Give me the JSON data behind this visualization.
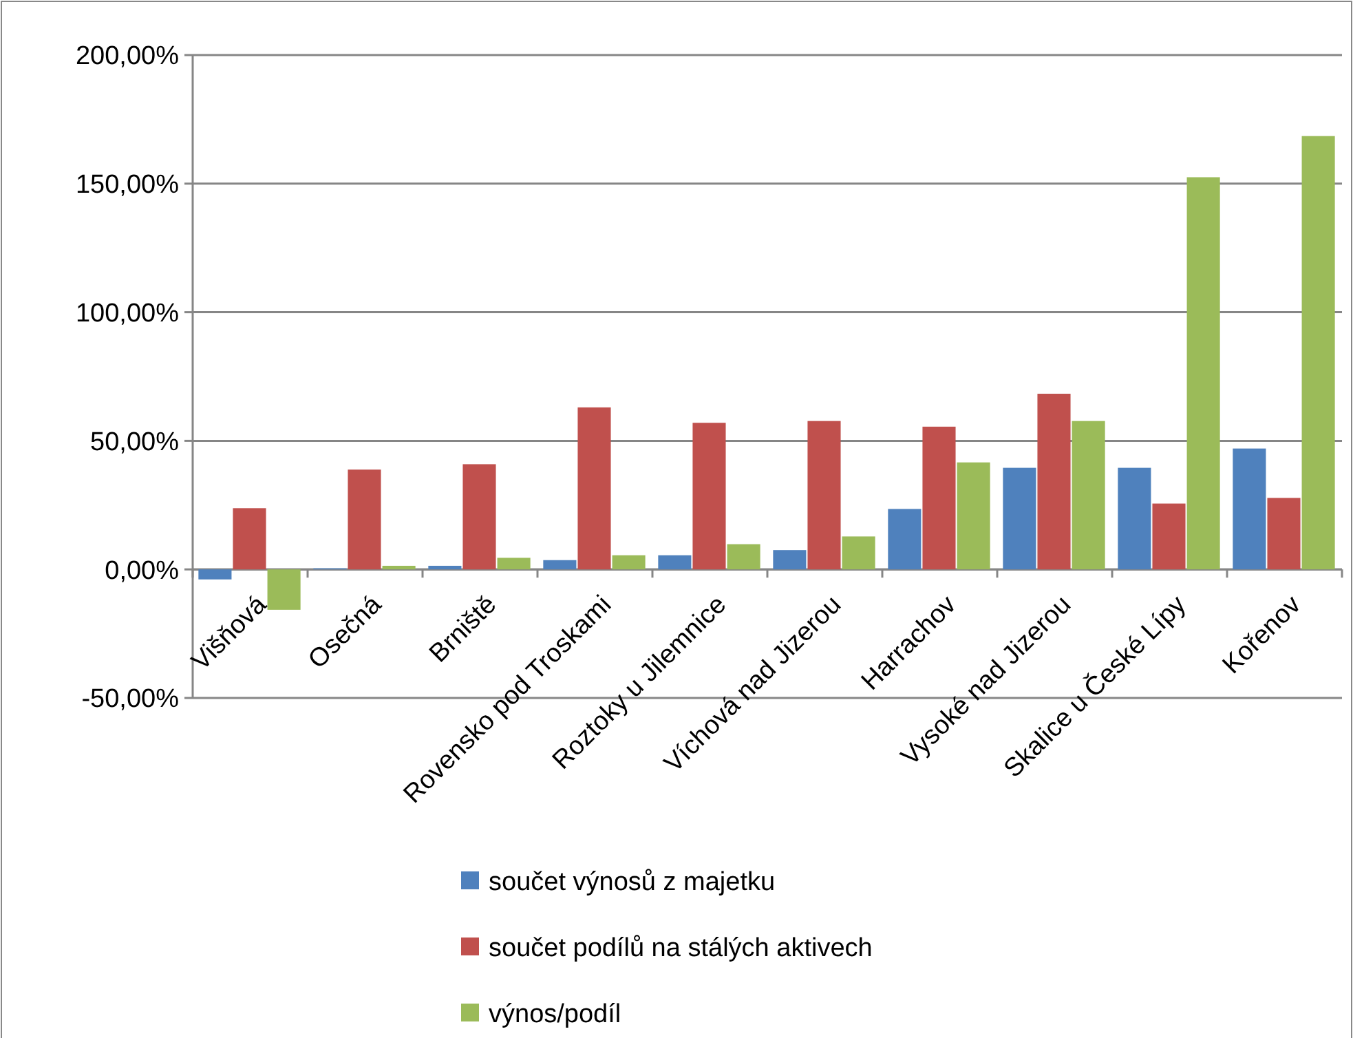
{
  "chart_data": {
    "type": "bar",
    "categories": [
      "Višňová",
      "Osečná",
      "Brniště",
      "Rovensko pod Troskami",
      "Roztoky u Jilemnice",
      "Víchová nad Jizerou",
      "Harrachov",
      "Vysoké nad Jizerou",
      "Skalice u České Lípy",
      "Kořenov"
    ],
    "series": [
      {
        "name": "součet výnosů z majetku",
        "color": "#4f81bd",
        "values": [
          -3.9,
          0.4,
          1.4,
          3.6,
          5.5,
          7.5,
          23.5,
          39.5,
          39.5,
          47
        ]
      },
      {
        "name": "součet podílů na stálých aktivech",
        "color": "#c0504d",
        "values": [
          23.8,
          38.8,
          40.9,
          63,
          57,
          57.7,
          55.5,
          68.3,
          25.6,
          27.8
        ]
      },
      {
        "name": "výnos/podíl",
        "color": "#9bbb59",
        "values": [
          -15.7,
          1.4,
          4.5,
          5.5,
          9.8,
          12.8,
          41.6,
          57.7,
          152.5,
          168.5
        ]
      }
    ],
    "ylim": [
      -50,
      200
    ],
    "yticks": [
      {
        "value": -50,
        "label": "-50,00%"
      },
      {
        "value": 0,
        "label": "0,00%"
      },
      {
        "value": 50,
        "label": "50,00%"
      },
      {
        "value": 100,
        "label": "100,00%"
      },
      {
        "value": 150,
        "label": "150,00%"
      },
      {
        "value": 200,
        "label": "200,00%"
      }
    ],
    "grid": "y",
    "legend": "bottom"
  }
}
